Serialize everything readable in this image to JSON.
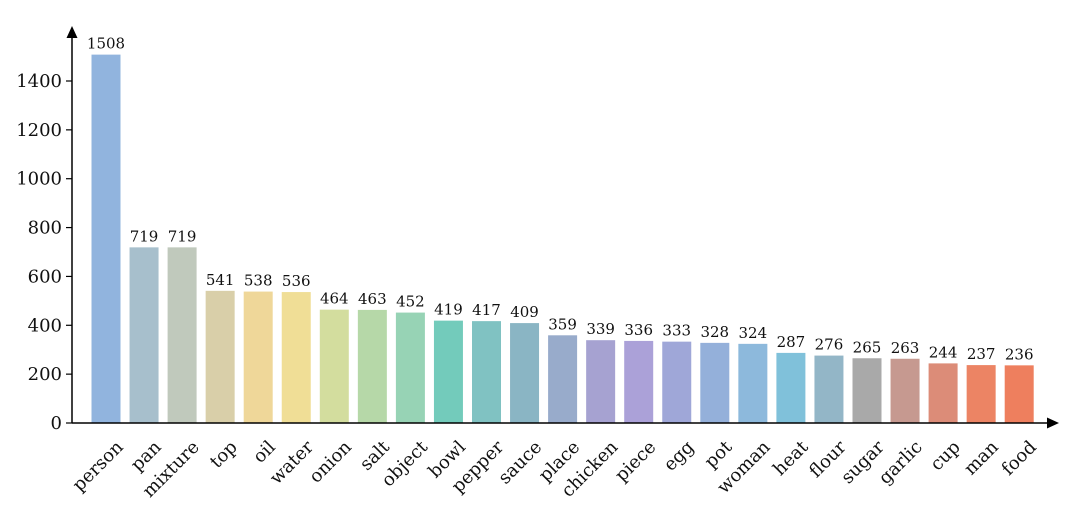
{
  "chart_data": {
    "type": "bar",
    "title": "",
    "xlabel": "",
    "ylabel": "",
    "ylim": [
      0,
      1600
    ],
    "yticks": [
      0,
      200,
      400,
      600,
      800,
      1000,
      1200,
      1400
    ],
    "grid": false,
    "categories": [
      "person",
      "pan",
      "mixture",
      "top",
      "oil",
      "water",
      "onion",
      "salt",
      "object",
      "bowl",
      "pepper",
      "sauce",
      "place",
      "chicken",
      "piece",
      "egg",
      "pot",
      "woman",
      "heat",
      "flour",
      "sugar",
      "garlic",
      "cup",
      "man",
      "food"
    ],
    "values": [
      1508,
      719,
      719,
      541,
      538,
      536,
      464,
      463,
      452,
      419,
      417,
      409,
      359,
      339,
      336,
      333,
      328,
      324,
      287,
      276,
      265,
      263,
      244,
      237,
      236
    ],
    "colors": [
      "#91b4de",
      "#a7bfcc",
      "#c0c9bc",
      "#d9cfa9",
      "#efd799",
      "#f0de96",
      "#d3dd9e",
      "#b6d8a8",
      "#97d3b5",
      "#73cbbb",
      "#80c2c2",
      "#8ab5c4",
      "#98abcb",
      "#a6a2d1",
      "#aba1d8",
      "#9fa7d8",
      "#94b0da",
      "#8db9dc",
      "#80c1da",
      "#93b6c7",
      "#a9a9a9",
      "#c69990",
      "#dc8c78",
      "#ec8464",
      "#ee7f5e"
    ]
  }
}
